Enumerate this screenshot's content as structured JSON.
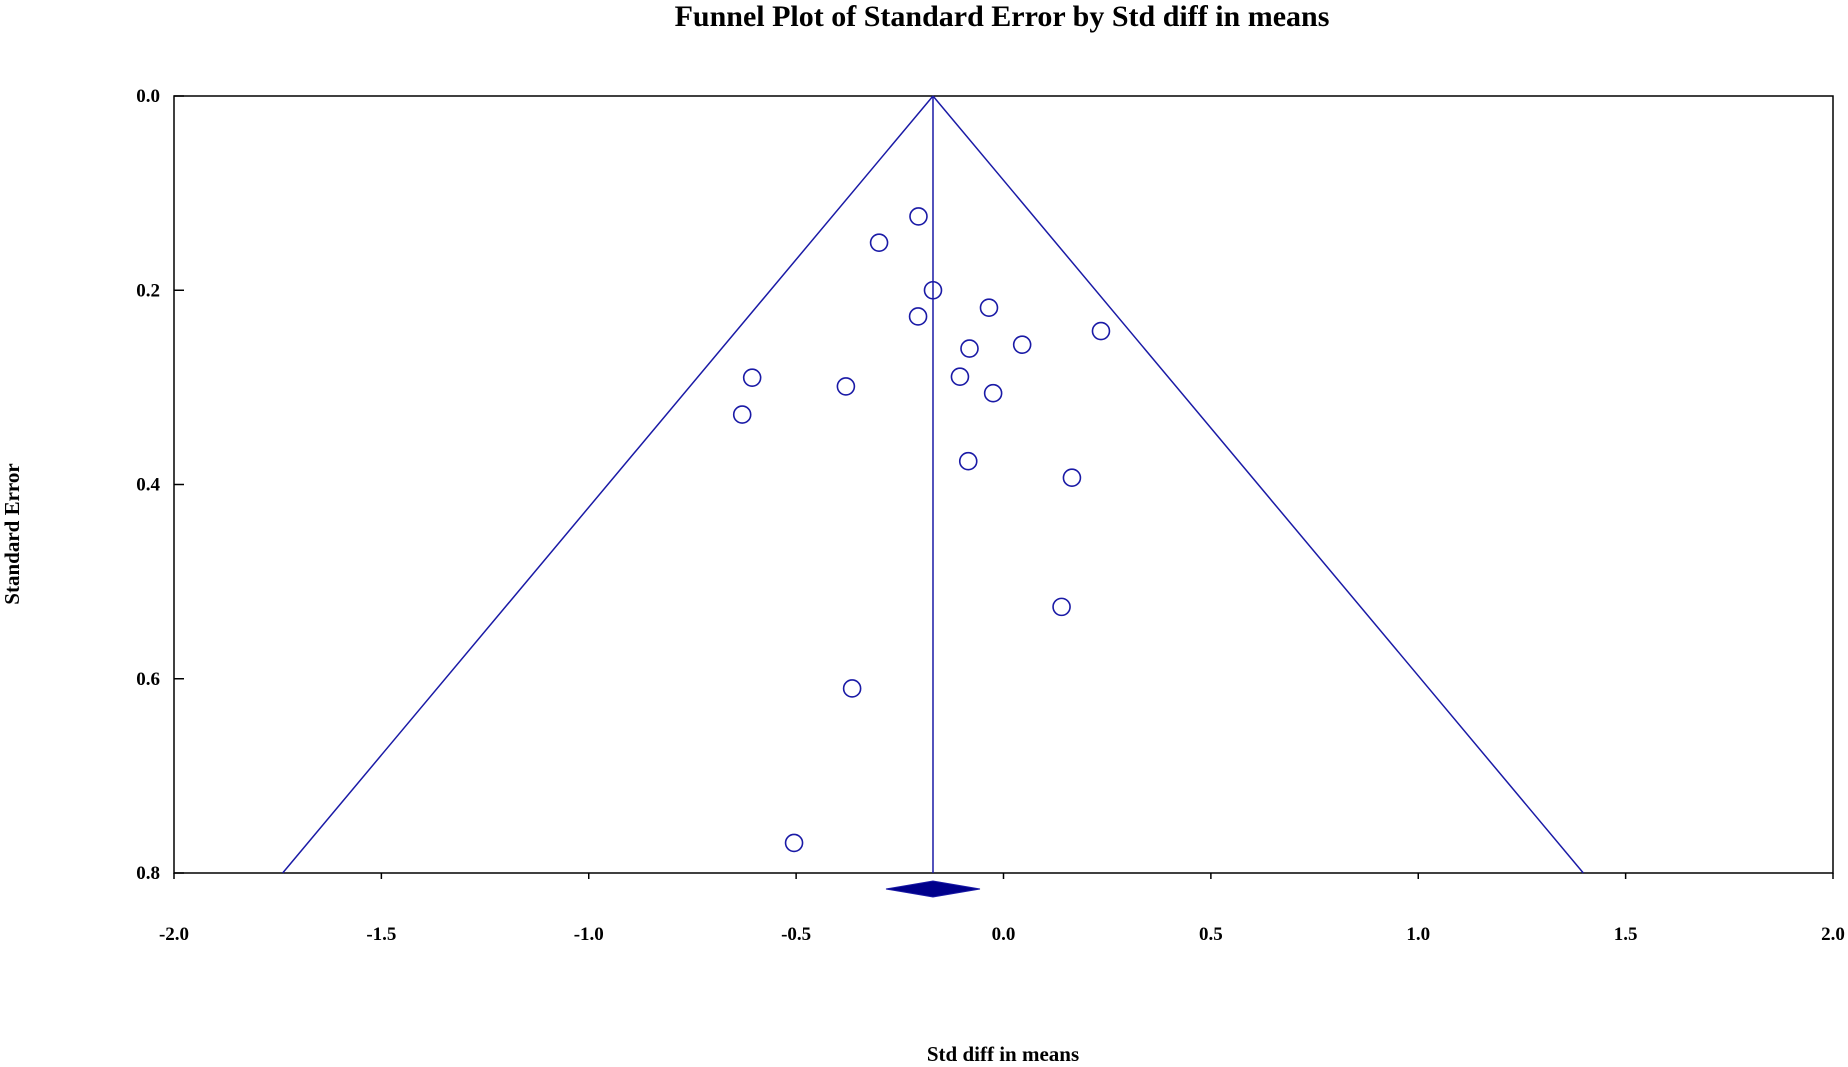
{
  "chart_data": {
    "type": "scatter",
    "title": "Funnel Plot of Standard Error by Std diff in means",
    "xlabel": "Std diff in means",
    "ylabel": "Standard Error",
    "xlim": [
      -2.0,
      2.0
    ],
    "ylim": [
      0.0,
      0.8
    ],
    "y_inverted": true,
    "x_ticks": [
      "-2.0",
      "-1.5",
      "-1.0",
      "-0.5",
      "0.0",
      "0.5",
      "1.0",
      "1.5",
      "2.0"
    ],
    "y_ticks": [
      "0.0",
      "0.2",
      "0.4",
      "0.6",
      "0.8"
    ],
    "grid": false,
    "legend": "none",
    "summary_effect": -0.17,
    "funnel_bottom_se": 0.8,
    "marker": "open-circle",
    "colors": {
      "primary": "#1a1aa6",
      "diamond_fill": "#00008b",
      "axes": "#000000"
    },
    "points": [
      {
        "x": -0.205,
        "y": 0.124
      },
      {
        "x": -0.3,
        "y": 0.151
      },
      {
        "x": -0.17,
        "y": 0.2
      },
      {
        "x": -0.035,
        "y": 0.218
      },
      {
        "x": -0.206,
        "y": 0.227
      },
      {
        "x": 0.235,
        "y": 0.242
      },
      {
        "x": 0.045,
        "y": 0.256
      },
      {
        "x": -0.082,
        "y": 0.26
      },
      {
        "x": -0.606,
        "y": 0.29
      },
      {
        "x": -0.105,
        "y": 0.289
      },
      {
        "x": -0.38,
        "y": 0.299
      },
      {
        "x": -0.025,
        "y": 0.306
      },
      {
        "x": -0.63,
        "y": 0.328
      },
      {
        "x": -0.085,
        "y": 0.376
      },
      {
        "x": 0.165,
        "y": 0.393
      },
      {
        "x": 0.14,
        "y": 0.526
      },
      {
        "x": -0.365,
        "y": 0.61
      },
      {
        "x": -0.505,
        "y": 0.769
      }
    ]
  }
}
